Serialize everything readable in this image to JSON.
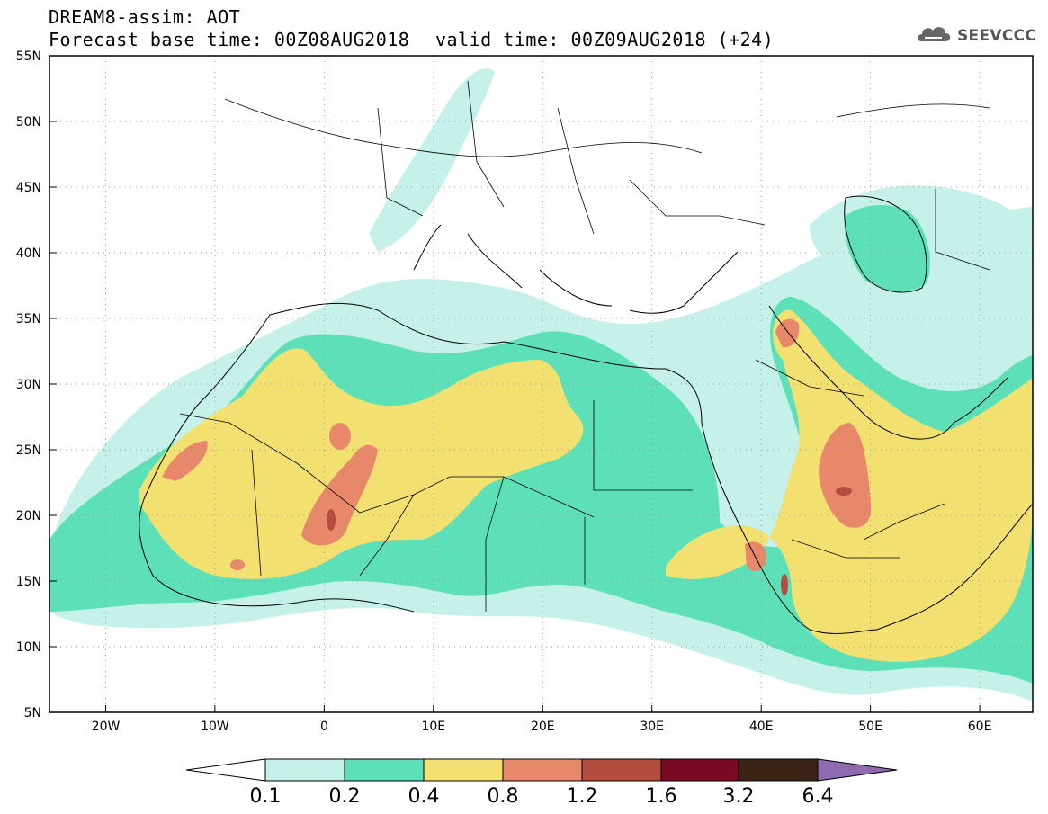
{
  "title": {
    "line1": "DREAM8-assim: AOT",
    "line2": "Forecast base time: 00Z08AUG2018",
    "valid": "valid time: 00Z09AUG2018 (+24)"
  },
  "logo": {
    "text": "SEEVCCC",
    "icon": "cloud-icon"
  },
  "map": {
    "lon_range": [
      -25,
      65
    ],
    "lat_range": [
      5,
      55
    ],
    "grid": "dotted",
    "lon_ticks": [
      "20W",
      "10W",
      "0",
      "10E",
      "20E",
      "30E",
      "40E",
      "50E",
      "60E"
    ],
    "lat_ticks": [
      "5N",
      "10N",
      "15N",
      "20N",
      "25N",
      "30N",
      "35N",
      "40N",
      "45N",
      "50N",
      "55N"
    ]
  },
  "colorbar": {
    "labels": [
      "0.1",
      "0.2",
      "0.4",
      "0.8",
      "1.2",
      "1.6",
      "3.2",
      "6.4"
    ],
    "colors": [
      "#ffffff",
      "#c6f1ea",
      "#5de0b8",
      "#f2e170",
      "#e8886a",
      "#b34d3f",
      "#7a0a24",
      "#3b2416",
      "#8e6ab0"
    ]
  },
  "palette": {
    "c1": "#c6f1ea",
    "c2": "#5de0b8",
    "c3": "#f2e170",
    "c4": "#e8886a",
    "c5": "#b34d3f"
  }
}
